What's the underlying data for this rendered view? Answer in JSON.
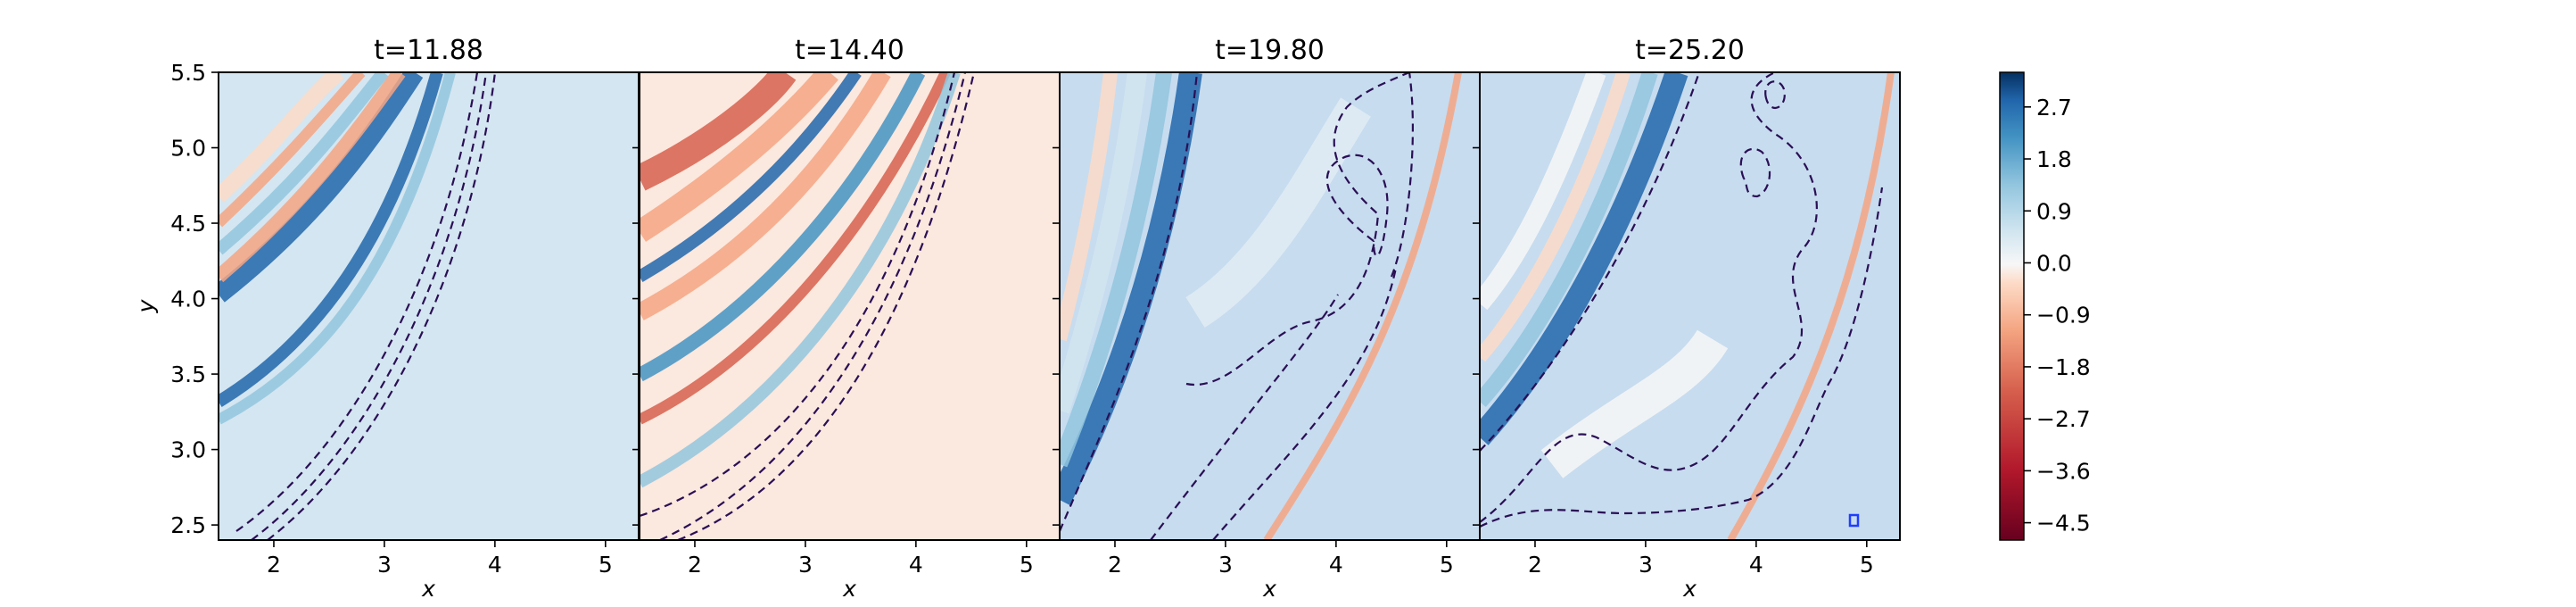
{
  "chart_data": {
    "type": "heatmap",
    "panels": [
      {
        "title": "t=11.88",
        "xlabel": "x",
        "ylabel": "y"
      },
      {
        "title": "t=14.40",
        "xlabel": "x",
        "ylabel": ""
      },
      {
        "title": "t=19.80",
        "xlabel": "x",
        "ylabel": ""
      },
      {
        "title": "t=25.20",
        "xlabel": "x",
        "ylabel": ""
      }
    ],
    "xlim": [
      1.5,
      5.3
    ],
    "ylim": [
      2.4,
      5.5
    ],
    "xticks": [
      2,
      3,
      4,
      5
    ],
    "xtick_labels": [
      "2",
      "3",
      "4",
      "5"
    ],
    "yticks": [
      2.5,
      3.0,
      3.5,
      4.0,
      4.5,
      5.0,
      5.5
    ],
    "ytick_labels": [
      "2.5",
      "3.0",
      "3.5",
      "4.0",
      "4.5",
      "5.0",
      "5.5"
    ],
    "colorbar": {
      "colormap": "RdBu",
      "range": [
        -4.8,
        3.3
      ],
      "ticks": [
        2.7,
        1.8,
        0.9,
        0.0,
        -0.9,
        -1.8,
        -2.7,
        -3.6,
        -4.5
      ],
      "tick_labels": [
        "2.7",
        "1.8",
        "0.9",
        "0.0",
        "−0.9",
        "−1.8",
        "−2.7",
        "−3.6",
        "−4.5"
      ]
    },
    "contour_style": {
      "color": "#2a0f55",
      "linestyle": "dashed"
    },
    "grid": false
  }
}
